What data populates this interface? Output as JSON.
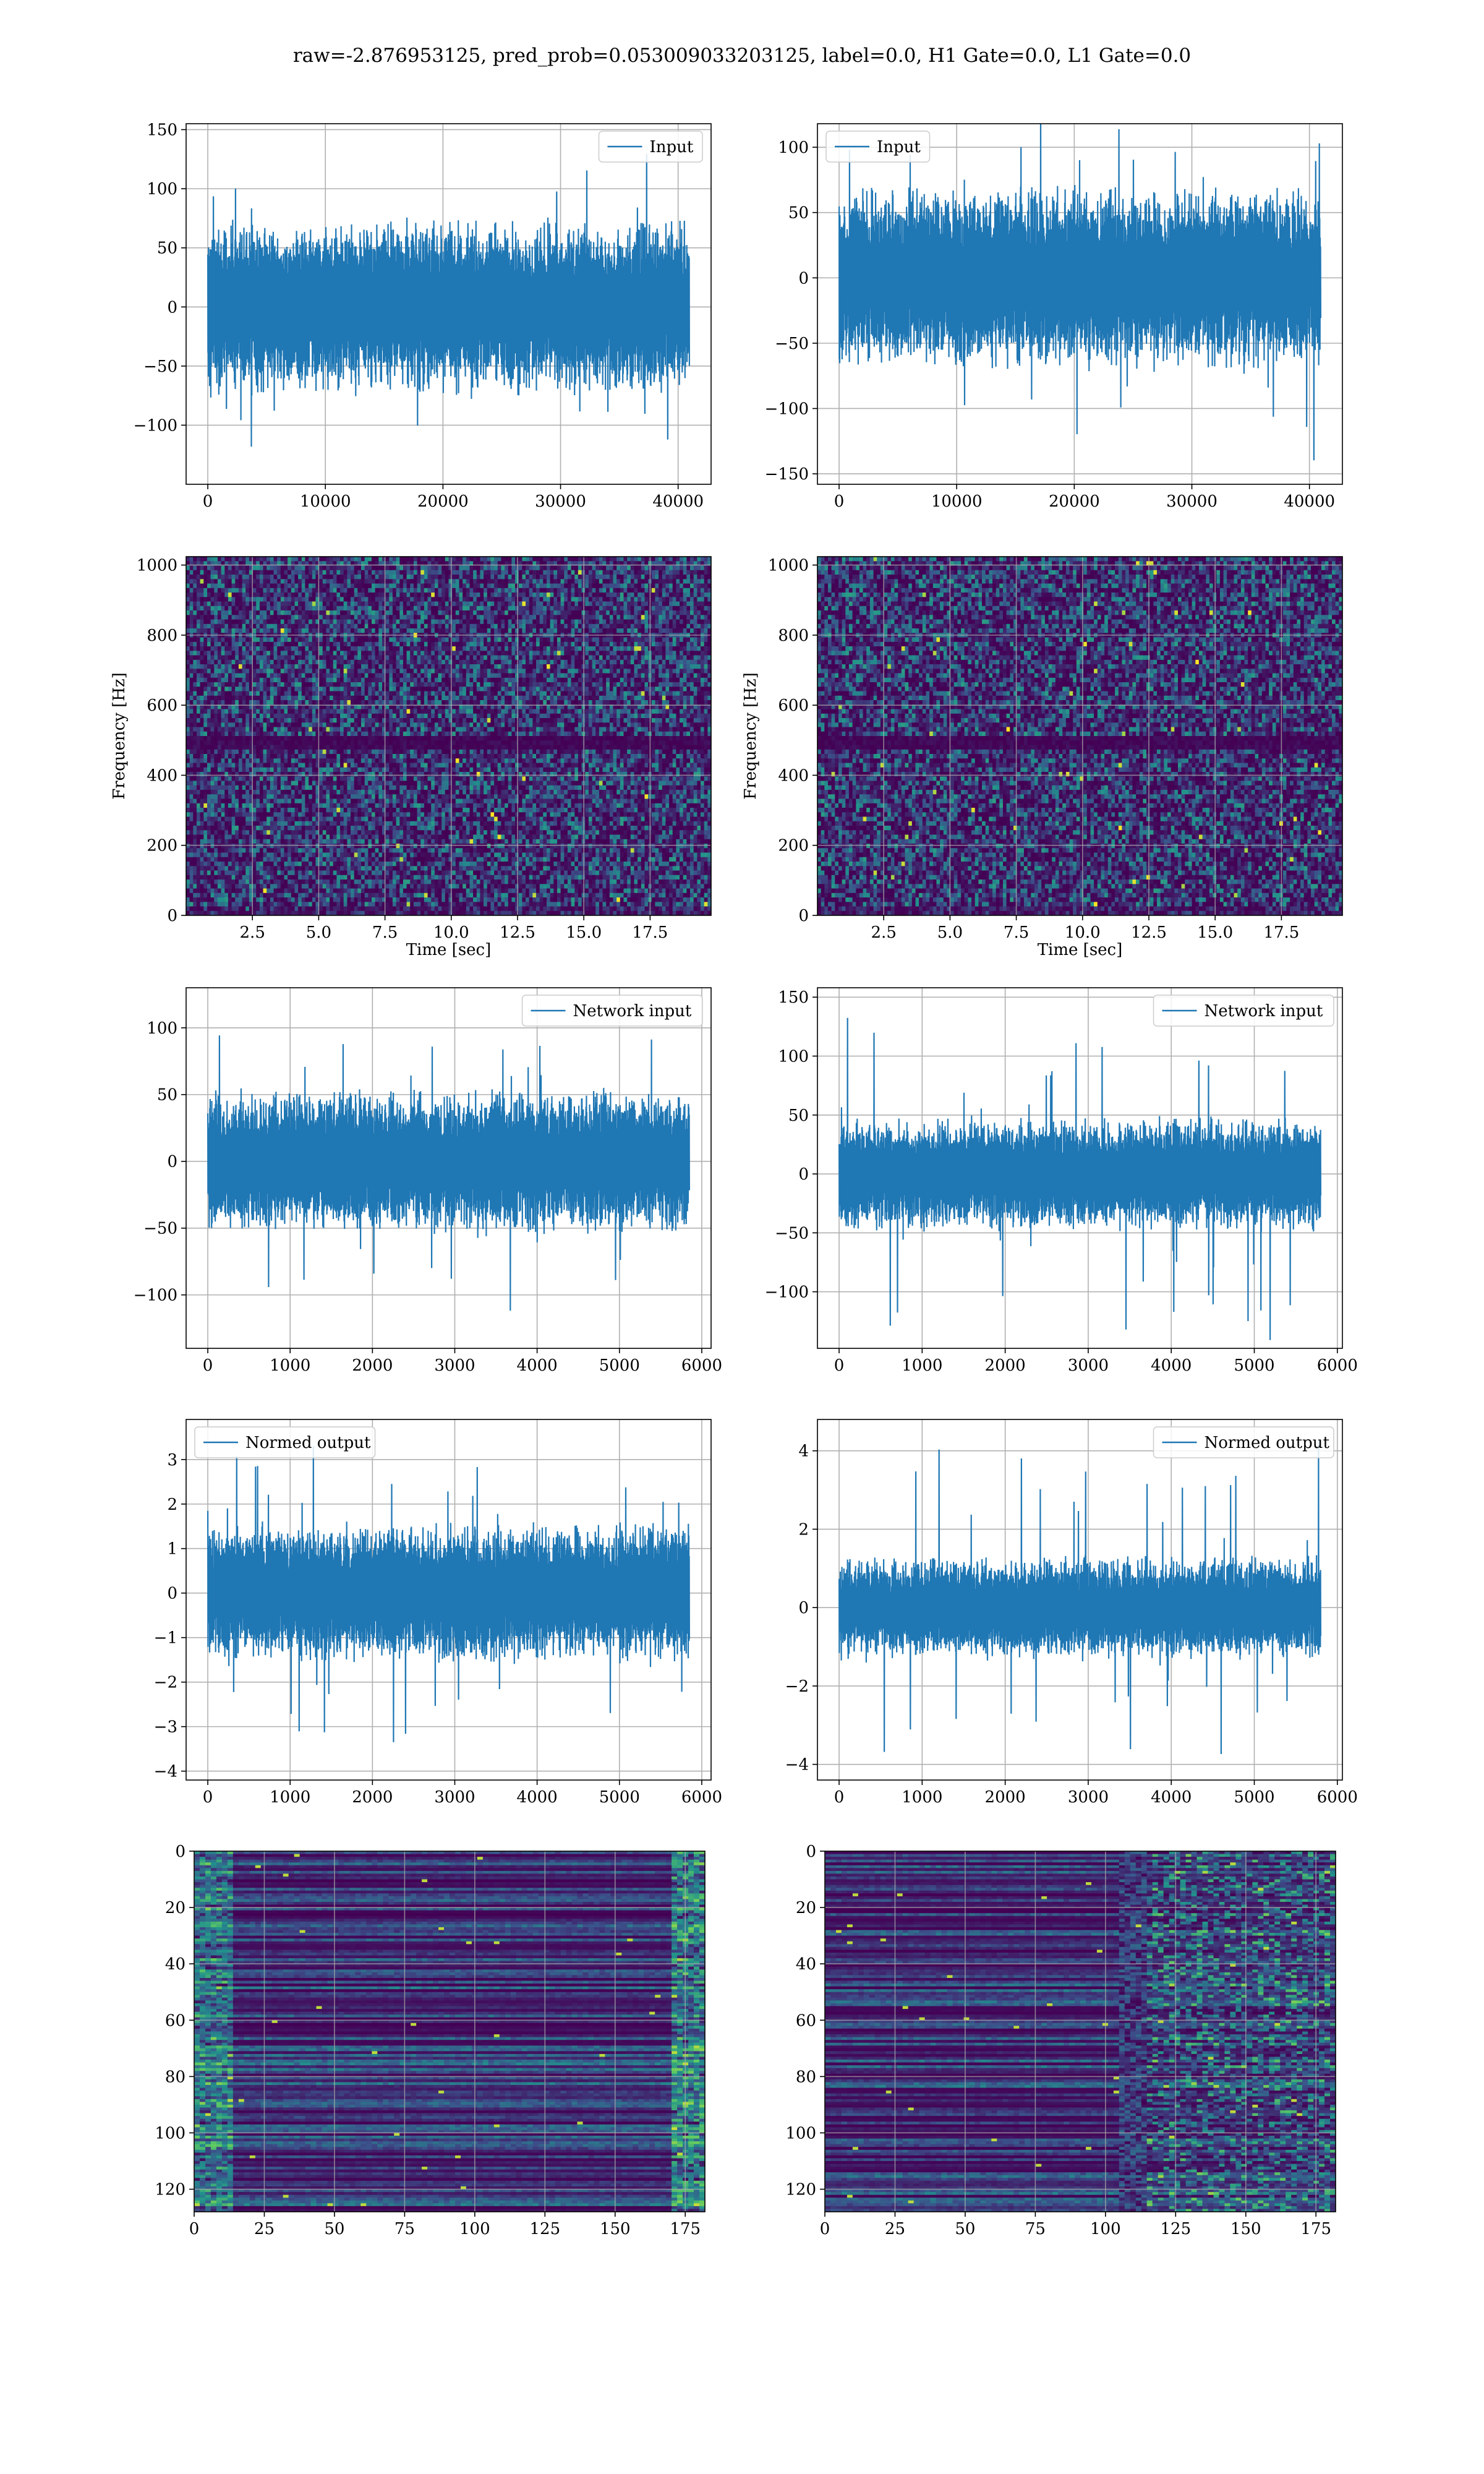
{
  "suptitle": "raw=-2.876953125, pred_prob=0.053009033203125, label=0.0, H1 Gate=0.0, L1 Gate=0.0",
  "colors": {
    "line": "#1f77b4",
    "grid": "#b0b0b0",
    "viridis": [
      "#440154",
      "#3b528b",
      "#21918c",
      "#5ec962",
      "#fde725"
    ]
  },
  "chart_data": [
    {
      "id": "row1-left",
      "type": "line",
      "legend": "Input",
      "legend_loc": "upper right",
      "x_range": [
        0,
        40960
      ],
      "noise_amp": 62,
      "peak": 131,
      "ylim": [
        -150,
        155
      ],
      "xticks": [
        0,
        10000,
        20000,
        30000,
        40000
      ],
      "xtick_labels": [
        "0",
        "10000",
        "20000",
        "30000",
        "40000"
      ],
      "yticks": [
        -100,
        -50,
        0,
        50,
        100,
        150
      ],
      "ytick_labels": [
        "−100",
        "−50",
        "0",
        "50",
        "100",
        "150"
      ],
      "xlabel": "",
      "ylabel": "",
      "grid": true
    },
    {
      "id": "row1-right",
      "type": "line",
      "legend": "Input",
      "legend_loc": "upper left",
      "x_range": [
        0,
        40960
      ],
      "noise_amp": 58,
      "peak": 147,
      "ylim": [
        -158,
        118
      ],
      "xticks": [
        0,
        10000,
        20000,
        30000,
        40000
      ],
      "xtick_labels": [
        "0",
        "10000",
        "20000",
        "30000",
        "40000"
      ],
      "yticks": [
        -150,
        -100,
        -50,
        0,
        50,
        100
      ],
      "ytick_labels": [
        "−150",
        "−100",
        "−50",
        "0",
        "50",
        "100"
      ],
      "xlabel": "",
      "ylabel": "",
      "grid": true
    },
    {
      "id": "row2-left",
      "type": "heatmap",
      "subtype": "spectrogram",
      "xlim": [
        0,
        19.8
      ],
      "ylim": [
        0,
        1024
      ],
      "xticks": [
        2.5,
        5.0,
        7.5,
        10.0,
        12.5,
        15.0,
        17.5
      ],
      "xtick_labels": [
        "2.5",
        "5.0",
        "7.5",
        "10.0",
        "12.5",
        "15.0",
        "17.5"
      ],
      "yticks": [
        0,
        200,
        400,
        600,
        800,
        1000
      ],
      "ytick_labels": [
        "0",
        "200",
        "400",
        "600",
        "800",
        "1000"
      ],
      "xlabel": "Time [sec]",
      "ylabel": "Frequency [Hz]",
      "dark_band_hz": 500,
      "colormap": "viridis",
      "grid": true
    },
    {
      "id": "row2-right",
      "type": "heatmap",
      "subtype": "spectrogram",
      "xlim": [
        0,
        19.8
      ],
      "ylim": [
        0,
        1024
      ],
      "xticks": [
        2.5,
        5.0,
        7.5,
        10.0,
        12.5,
        15.0,
        17.5
      ],
      "xtick_labels": [
        "2.5",
        "5.0",
        "7.5",
        "10.0",
        "12.5",
        "15.0",
        "17.5"
      ],
      "yticks": [
        0,
        200,
        400,
        600,
        800,
        1000
      ],
      "ytick_labels": [
        "0",
        "200",
        "400",
        "600",
        "800",
        "1000"
      ],
      "xlabel": "Time [sec]",
      "ylabel": "Frequency [Hz]",
      "dark_band_hz": 500,
      "colormap": "viridis",
      "grid": true
    },
    {
      "id": "row3-left",
      "type": "line",
      "legend": "Network input",
      "legend_loc": "upper right",
      "x_range": [
        0,
        5850
      ],
      "noise_amp": 45,
      "peak": 120,
      "ylim": [
        -140,
        130
      ],
      "xticks": [
        0,
        1000,
        2000,
        3000,
        4000,
        5000,
        6000
      ],
      "xtick_labels": [
        "0",
        "1000",
        "2000",
        "3000",
        "4000",
        "5000",
        "6000"
      ],
      "yticks": [
        -100,
        -50,
        0,
        50,
        100
      ],
      "ytick_labels": [
        "−100",
        "−50",
        "0",
        "50",
        "100"
      ],
      "xlabel": "",
      "ylabel": "",
      "grid": true
    },
    {
      "id": "row3-right",
      "type": "line",
      "legend": "Network input",
      "legend_loc": "upper right",
      "x_range": [
        0,
        5800
      ],
      "noise_amp": 40,
      "peak": 148,
      "ylim": [
        -148,
        158
      ],
      "xticks": [
        0,
        1000,
        2000,
        3000,
        4000,
        5000,
        6000
      ],
      "xtick_labels": [
        "0",
        "1000",
        "2000",
        "3000",
        "4000",
        "5000",
        "6000"
      ],
      "yticks": [
        -100,
        -50,
        0,
        50,
        100,
        150
      ],
      "ytick_labels": [
        "−100",
        "−50",
        "0",
        "50",
        "100",
        "150"
      ],
      "xlabel": "",
      "ylabel": "",
      "grid": true
    },
    {
      "id": "row4-left",
      "type": "line",
      "legend": "Normed output",
      "legend_loc": "upper left",
      "x_range": [
        0,
        5850
      ],
      "noise_amp": 1.3,
      "peak": 3.6,
      "ylim": [
        -4.2,
        3.9
      ],
      "xticks": [
        0,
        1000,
        2000,
        3000,
        4000,
        5000,
        6000
      ],
      "xtick_labels": [
        "0",
        "1000",
        "2000",
        "3000",
        "4000",
        "5000",
        "6000"
      ],
      "yticks": [
        -4,
        -3,
        -2,
        -1,
        0,
        1,
        2,
        3
      ],
      "ytick_labels": [
        "−4",
        "−3",
        "−2",
        "−1",
        "0",
        "1",
        "2",
        "3"
      ],
      "xlabel": "",
      "ylabel": "",
      "grid": true
    },
    {
      "id": "row4-right",
      "type": "line",
      "legend": "Normed output",
      "legend_loc": "upper right",
      "x_range": [
        0,
        5800
      ],
      "noise_amp": 1.1,
      "peak": 4.5,
      "ylim": [
        -4.4,
        4.8
      ],
      "xticks": [
        0,
        1000,
        2000,
        3000,
        4000,
        5000,
        6000
      ],
      "xtick_labels": [
        "0",
        "1000",
        "2000",
        "3000",
        "4000",
        "5000",
        "6000"
      ],
      "yticks": [
        -4,
        -2,
        0,
        2,
        4
      ],
      "ytick_labels": [
        "−4",
        "−2",
        "0",
        "2",
        "4"
      ],
      "xlabel": "",
      "ylabel": "",
      "grid": true
    },
    {
      "id": "row5-left",
      "type": "heatmap",
      "subtype": "feature-map",
      "xlim": [
        0,
        182
      ],
      "ylim": [
        128,
        0
      ],
      "xticks": [
        0,
        25,
        50,
        75,
        100,
        125,
        150,
        175
      ],
      "xtick_labels": [
        "0",
        "25",
        "50",
        "75",
        "100",
        "125",
        "150",
        "175"
      ],
      "yticks": [
        0,
        20,
        40,
        60,
        80,
        100,
        120
      ],
      "ytick_labels": [
        "0",
        "20",
        "40",
        "60",
        "80",
        "100",
        "120"
      ],
      "xlabel": "",
      "ylabel": "",
      "colormap": "viridis",
      "grid": true
    },
    {
      "id": "row5-right",
      "type": "heatmap",
      "subtype": "feature-map",
      "xlim": [
        0,
        182
      ],
      "ylim": [
        128,
        0
      ],
      "xticks": [
        0,
        25,
        50,
        75,
        100,
        125,
        150,
        175
      ],
      "xtick_labels": [
        "0",
        "25",
        "50",
        "75",
        "100",
        "125",
        "150",
        "175"
      ],
      "yticks": [
        0,
        20,
        40,
        60,
        80,
        100,
        120
      ],
      "ytick_labels": [
        "0",
        "20",
        "40",
        "60",
        "80",
        "100",
        "120"
      ],
      "xlabel": "",
      "ylabel": "",
      "colormap": "viridis",
      "grid": true
    }
  ]
}
